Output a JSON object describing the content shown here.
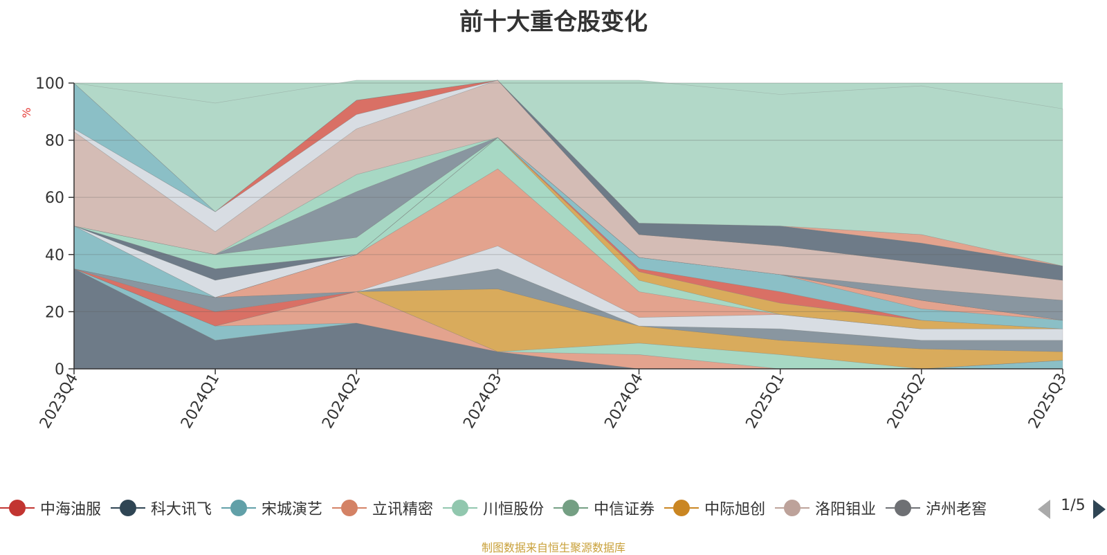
{
  "title": "前十大重仓股变化",
  "source_note": "制图数据来自恒生聚源数据库",
  "legend_page": "1/5",
  "chart_data": {
    "type": "area",
    "stacked": true,
    "ylabel": "%",
    "ylim": [
      0,
      100
    ],
    "yticks": [
      0,
      20,
      40,
      60,
      80,
      100
    ],
    "grid": true,
    "background": "#b2d8c8",
    "categories": [
      "2023Q4",
      "2024Q1",
      "2024Q2",
      "2024Q3",
      "2024Q4",
      "2025Q1",
      "2025Q2",
      "2025Q3"
    ],
    "layers": [
      {
        "color": "#6e7b88",
        "values": [
          35,
          10,
          16,
          6,
          0,
          0,
          0,
          0
        ]
      },
      {
        "color": "#d97065",
        "values": [
          0,
          0,
          0,
          0,
          0,
          0,
          0,
          0
        ]
      },
      {
        "color": "#8bbfc6",
        "values": [
          0,
          5,
          0,
          0,
          0,
          0,
          0,
          3
        ]
      },
      {
        "color": "#e3a38e",
        "values": [
          0,
          0,
          11,
          0,
          5,
          0,
          0,
          0
        ]
      },
      {
        "color": "#a7d8c4",
        "values": [
          0,
          0,
          0,
          0,
          4,
          5,
          0,
          0
        ]
      },
      {
        "color": "#d9ab5c",
        "values": [
          0,
          0,
          0,
          22,
          6,
          5,
          7,
          3
        ]
      },
      {
        "color": "#d97065",
        "values": [
          0,
          5,
          0,
          0,
          0,
          0,
          0,
          0
        ]
      },
      {
        "color": "#8996a0",
        "values": [
          0,
          5,
          0,
          7,
          0,
          4,
          3,
          4
        ]
      },
      {
        "color": "#d8dde3",
        "values": [
          0,
          0,
          0,
          8,
          3,
          5,
          4,
          4
        ]
      },
      {
        "color": "#e3a38e",
        "values": [
          0,
          0,
          13,
          27,
          9,
          0,
          0,
          0
        ]
      },
      {
        "color": "#a7d8c4",
        "values": [
          0,
          0,
          0,
          11,
          4,
          0,
          0,
          0
        ]
      },
      {
        "color": "#d9ab5c",
        "values": [
          0,
          0,
          0,
          0,
          3,
          4,
          3,
          0
        ]
      },
      {
        "color": "#d97065",
        "values": [
          0,
          0,
          0,
          0,
          1,
          4,
          0,
          0
        ]
      },
      {
        "color": "#8bbfc6",
        "values": [
          15,
          0,
          0,
          0,
          4,
          6,
          4,
          3
        ]
      },
      {
        "color": "#e3a38e",
        "values": [
          0,
          0,
          0,
          0,
          0,
          0,
          3,
          0
        ]
      },
      {
        "color": "#d8dde3",
        "values": [
          0,
          6,
          0,
          0,
          0,
          0,
          0,
          0
        ]
      },
      {
        "color": "#6e7b88",
        "values": [
          0,
          4,
          0,
          0,
          0,
          0,
          0,
          0
        ]
      },
      {
        "color": "#a7d8c4",
        "values": [
          0,
          5,
          6,
          0,
          0,
          0,
          0,
          0
        ]
      },
      {
        "color": "#d9ab5c",
        "values": [
          0,
          0,
          0,
          0,
          0,
          0,
          0,
          0
        ]
      },
      {
        "color": "#8996a0",
        "values": [
          0,
          0,
          16,
          0,
          0,
          0,
          4,
          7
        ]
      },
      {
        "color": "#a7d8c4",
        "values": [
          0,
          0,
          6,
          0,
          0,
          0,
          0,
          0
        ]
      },
      {
        "color": "#d4bcb5",
        "values": [
          33,
          8,
          16,
          20,
          8,
          10,
          9,
          7
        ]
      },
      {
        "color": "#d8dde3",
        "values": [
          1,
          7,
          5,
          0,
          0,
          0,
          0,
          0
        ]
      },
      {
        "color": "#d97065",
        "values": [
          0,
          0,
          5,
          0,
          0,
          0,
          0,
          0
        ]
      },
      {
        "color": "#8bbfc6",
        "values": [
          16,
          0,
          0,
          0,
          0,
          0,
          0,
          0
        ]
      },
      {
        "color": "#6e7b88",
        "values": [
          0,
          0,
          0,
          0,
          4,
          7,
          7,
          5
        ]
      },
      {
        "color": "#e3a38e",
        "values": [
          0,
          0,
          0,
          0,
          0,
          0,
          3,
          0
        ]
      },
      {
        "color": "#b2d8c8",
        "values": [
          0,
          38,
          7,
          0,
          50,
          46,
          52,
          55
        ]
      }
    ]
  },
  "legend": [
    {
      "label": "中海油服",
      "color": "#c23531"
    },
    {
      "label": "科大讯飞",
      "color": "#2f4554"
    },
    {
      "label": "宋城演艺",
      "color": "#61a0a8"
    },
    {
      "label": "立讯精密",
      "color": "#d48265"
    },
    {
      "label": "川恒股份",
      "color": "#91c7ae"
    },
    {
      "label": "中信证券",
      "color": "#749f83"
    },
    {
      "label": "中际旭创",
      "color": "#ca8622"
    },
    {
      "label": "洛阳钼业",
      "color": "#bda29a"
    },
    {
      "label": "泸州老窖",
      "color": "#6e7074"
    }
  ]
}
